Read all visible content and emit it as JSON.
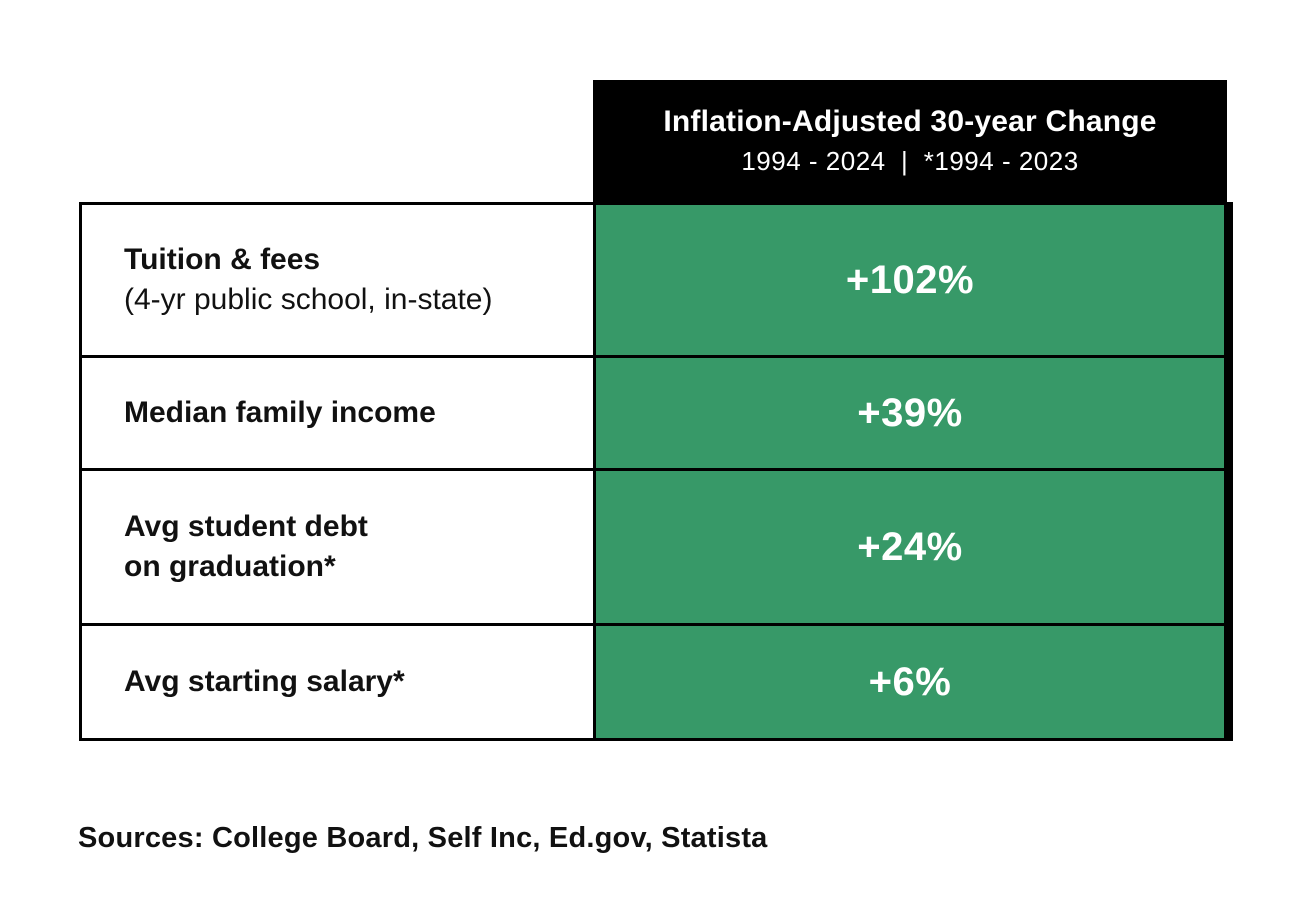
{
  "header": {
    "title": "Inflation-Adjusted 30-year Change",
    "subtitle": "1994 - 2024  |  *1994 - 2023"
  },
  "table": {
    "rows": [
      {
        "line1": "Tuition & fees",
        "line2": "(4-yr public school, in-state)",
        "value": "+102%"
      },
      {
        "line1": "Median family income",
        "value": "+39%"
      },
      {
        "line1": "Avg student debt",
        "line2": "on graduation*",
        "value": "+24%"
      },
      {
        "line1": "Avg starting salary*",
        "value": "+6%"
      }
    ]
  },
  "footer": {
    "sources": "Sources: College Board, Self Inc, Ed.gov, Statista"
  },
  "colors": {
    "value_green": "#379968",
    "header_black": "#000000",
    "text_white": "#ffffff"
  },
  "chart_data": {
    "type": "table",
    "title": "Inflation-Adjusted 30-year Change",
    "subtitle": "1994 - 2024 | *1994 - 2023",
    "categories": [
      "Tuition & fees (4-yr public school, in-state)",
      "Median family income",
      "Avg student debt on graduation*",
      "Avg starting salary*"
    ],
    "values": [
      102,
      39,
      24,
      6
    ],
    "value_labels": [
      "+102%",
      "+39%",
      "+24%",
      "+6%"
    ],
    "unit": "percent change",
    "source_note": "Sources: College Board, Self Inc, Ed.gov, Statista"
  }
}
